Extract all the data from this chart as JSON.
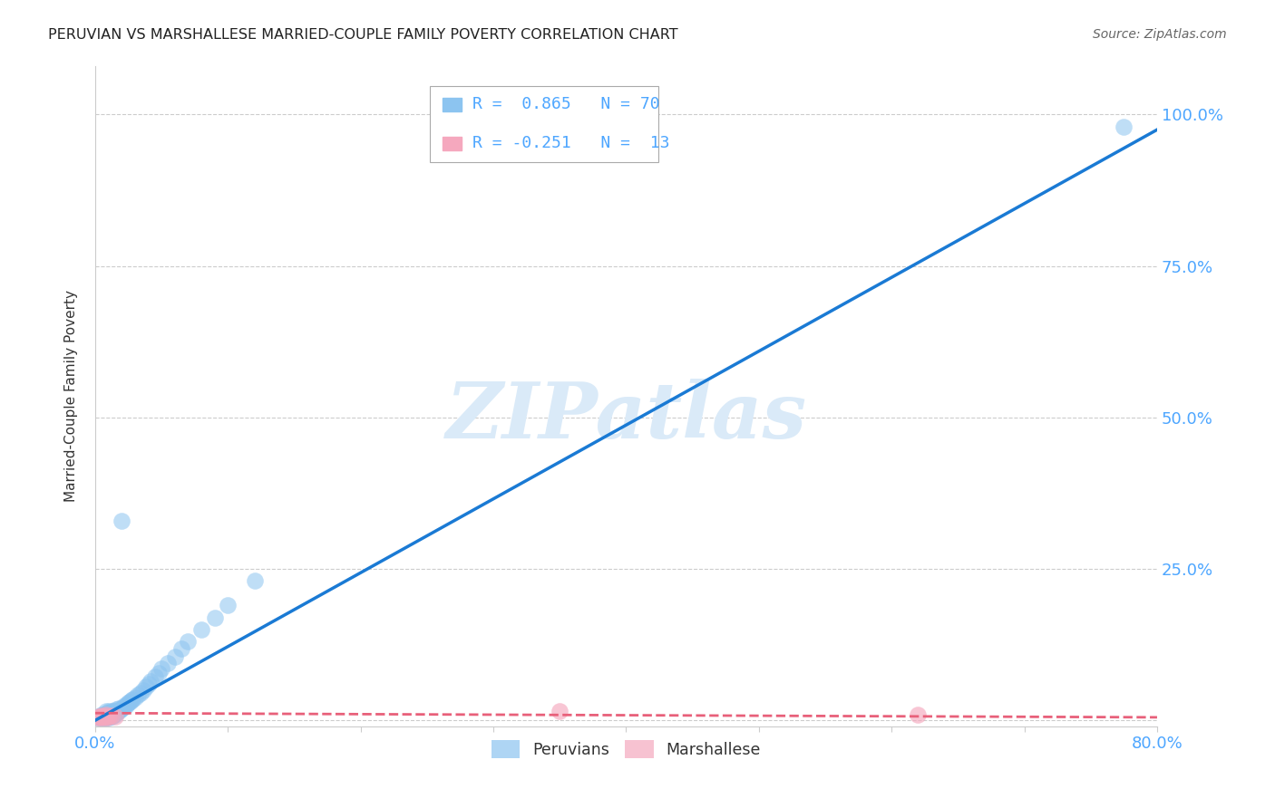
{
  "title": "PERUVIAN VS MARSHALLESE MARRIED-COUPLE FAMILY POVERTY CORRELATION CHART",
  "source": "Source: ZipAtlas.com",
  "ylabel": "Married-Couple Family Poverty",
  "xlim": [
    0,
    0.8
  ],
  "ylim": [
    -0.01,
    1.08
  ],
  "yticks": [
    0.0,
    0.25,
    0.5,
    0.75,
    1.0
  ],
  "ytick_labels": [
    "",
    "25.0%",
    "50.0%",
    "75.0%",
    "100.0%"
  ],
  "xticks": [
    0.0,
    0.1,
    0.2,
    0.3,
    0.4,
    0.5,
    0.6,
    0.7,
    0.8
  ],
  "background_color": "#ffffff",
  "grid_color": "#cccccc",
  "tick_color": "#4da6ff",
  "blue_color": "#8cc4f0",
  "pink_color": "#f5a8be",
  "blue_line_color": "#1a7ad4",
  "pink_line_color": "#e8607a",
  "watermark_color": "#daeaf8",
  "legend_r_blue": "R =  0.865   N = 70",
  "legend_r_pink": "R = -0.251   N =  13",
  "peruvian_x": [
    0.002,
    0.003,
    0.004,
    0.004,
    0.005,
    0.005,
    0.005,
    0.006,
    0.006,
    0.006,
    0.007,
    0.007,
    0.007,
    0.008,
    0.008,
    0.008,
    0.008,
    0.009,
    0.009,
    0.009,
    0.01,
    0.01,
    0.01,
    0.01,
    0.011,
    0.011,
    0.012,
    0.012,
    0.012,
    0.013,
    0.013,
    0.014,
    0.014,
    0.015,
    0.015,
    0.016,
    0.016,
    0.017,
    0.018,
    0.018,
    0.019,
    0.02,
    0.021,
    0.022,
    0.023,
    0.024,
    0.025,
    0.026,
    0.027,
    0.028,
    0.03,
    0.032,
    0.034,
    0.036,
    0.038,
    0.04,
    0.042,
    0.045,
    0.048,
    0.05,
    0.055,
    0.06,
    0.065,
    0.07,
    0.08,
    0.09,
    0.1,
    0.12,
    0.02,
    0.775
  ],
  "peruvian_y": [
    0.005,
    0.005,
    0.005,
    0.008,
    0.005,
    0.007,
    0.01,
    0.005,
    0.007,
    0.01,
    0.005,
    0.007,
    0.01,
    0.005,
    0.007,
    0.01,
    0.015,
    0.005,
    0.008,
    0.012,
    0.005,
    0.008,
    0.012,
    0.015,
    0.007,
    0.01,
    0.007,
    0.01,
    0.015,
    0.008,
    0.012,
    0.01,
    0.015,
    0.01,
    0.015,
    0.012,
    0.018,
    0.015,
    0.015,
    0.02,
    0.018,
    0.02,
    0.022,
    0.025,
    0.025,
    0.028,
    0.03,
    0.03,
    0.033,
    0.035,
    0.038,
    0.042,
    0.045,
    0.05,
    0.055,
    0.06,
    0.065,
    0.072,
    0.078,
    0.085,
    0.095,
    0.105,
    0.118,
    0.13,
    0.15,
    0.17,
    0.19,
    0.23,
    0.33,
    0.98
  ],
  "marshallese_x": [
    0.002,
    0.003,
    0.004,
    0.005,
    0.006,
    0.007,
    0.008,
    0.009,
    0.01,
    0.012,
    0.015,
    0.35,
    0.62
  ],
  "marshallese_y": [
    0.005,
    0.007,
    0.005,
    0.008,
    0.005,
    0.007,
    0.01,
    0.005,
    0.007,
    0.008,
    0.006,
    0.015,
    0.01
  ],
  "blue_line_x": [
    0.0,
    0.8
  ],
  "blue_line_y": [
    0.0,
    0.975
  ],
  "pink_line_x": [
    0.0,
    0.8
  ],
  "pink_line_y": [
    0.012,
    0.005
  ]
}
